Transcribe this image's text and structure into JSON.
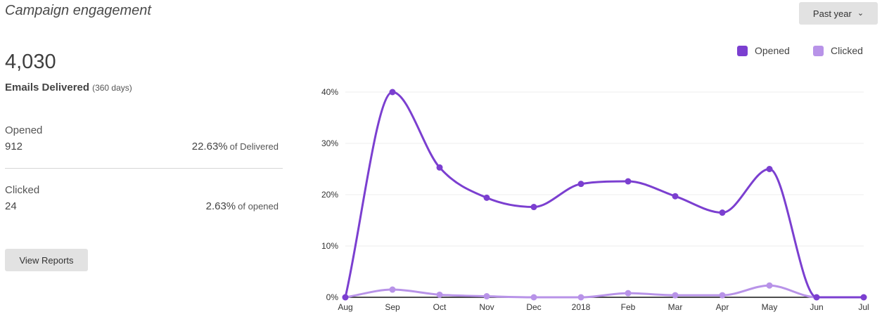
{
  "title": "Campaign engagement",
  "period_selector": {
    "label": "Past year"
  },
  "summary": {
    "total": "4,030",
    "total_label": "Emails Delivered",
    "total_period": "(360 days)",
    "opened": {
      "label": "Opened",
      "count": "912",
      "percent": "22.63%",
      "percent_of": "of Delivered"
    },
    "clicked": {
      "label": "Clicked",
      "count": "24",
      "percent": "2.63%",
      "percent_of": "of opened"
    }
  },
  "view_reports_label": "View Reports",
  "colors": {
    "opened": "#7b3fd0",
    "clicked": "#b893e8"
  },
  "chart_data": {
    "type": "line",
    "x": [
      "Aug",
      "Sep",
      "Oct",
      "Nov",
      "Dec",
      "2018",
      "Feb",
      "Mar",
      "Apr",
      "May",
      "Jun",
      "Jul"
    ],
    "series": [
      {
        "name": "Opened",
        "values": [
          0,
          40,
          25.3,
          19.4,
          17.6,
          22.1,
          22.6,
          19.7,
          16.5,
          25,
          0,
          0
        ]
      },
      {
        "name": "Clicked",
        "values": [
          0,
          1.5,
          0.5,
          0.2,
          0,
          0,
          0.8,
          0.4,
          0.4,
          2.3,
          0,
          0
        ]
      }
    ],
    "ylim": [
      0,
      40
    ],
    "yticks": [
      "0%",
      "10%",
      "20%",
      "30%",
      "40%"
    ],
    "grid": true,
    "legend": "top-right"
  }
}
